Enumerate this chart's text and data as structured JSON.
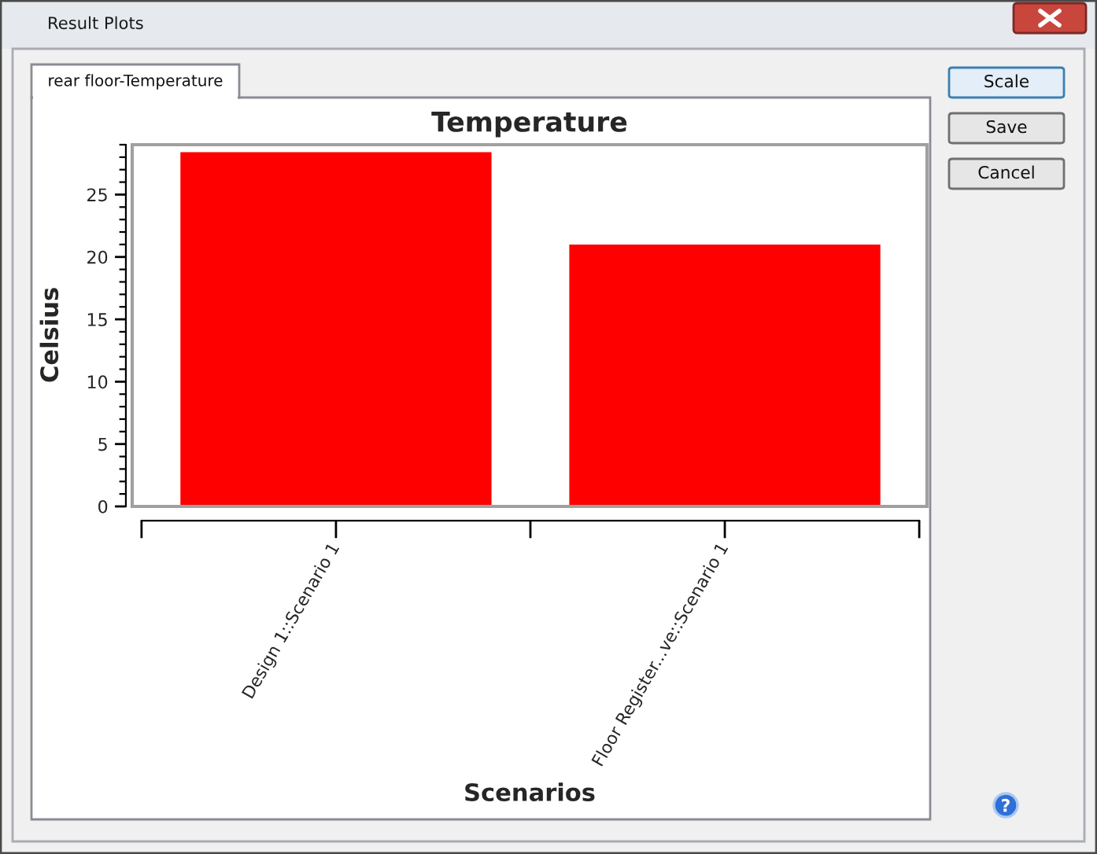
{
  "chart_data": {
    "type": "bar",
    "title": "Temperature",
    "xlabel": "Scenarios",
    "ylabel": "Celsius",
    "categories": [
      "Design 1::Scenario 1",
      "Floor Register...ve::Scenario 1"
    ],
    "values": [
      28.4,
      21.0
    ],
    "color": "#ff0000",
    "ylim": [
      0,
      29
    ],
    "yticks": [
      0,
      5,
      10,
      15,
      20,
      25
    ],
    "annotations": [
      "Result Plots",
      "rear floor-Temperature",
      "Scale",
      "Save",
      "Cancel"
    ]
  }
}
